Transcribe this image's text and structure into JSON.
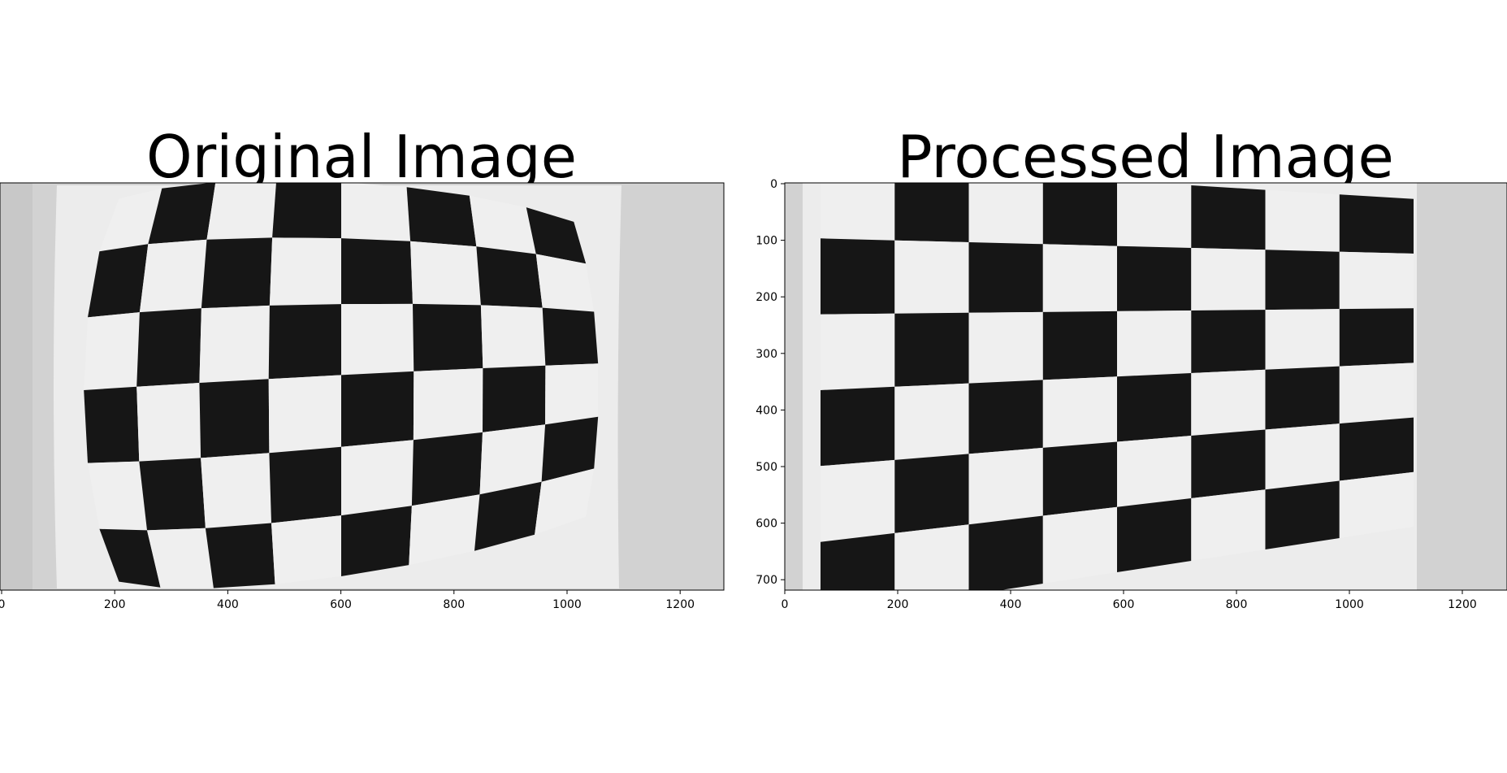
{
  "figure": {
    "panels": [
      {
        "id": "original",
        "title": "Original Image",
        "distortion": 0.12,
        "x_ticks": [
          "0",
          "200",
          "400",
          "600",
          "800",
          "1000",
          "1200"
        ],
        "y_ticks": []
      },
      {
        "id": "processed",
        "title": "Processed Image",
        "distortion": 0.0,
        "x_ticks": [
          "0",
          "200",
          "400",
          "600",
          "800",
          "1000",
          "1200"
        ],
        "y_ticks": [
          "0",
          "100",
          "200",
          "300",
          "400",
          "500",
          "600",
          "700"
        ]
      }
    ],
    "colors": {
      "background": "#ffffff",
      "wall": "#d2d2d2",
      "paper": "#ececec",
      "dark_square": "#161616",
      "light_square": "#efefef",
      "axis": "#000000"
    }
  }
}
